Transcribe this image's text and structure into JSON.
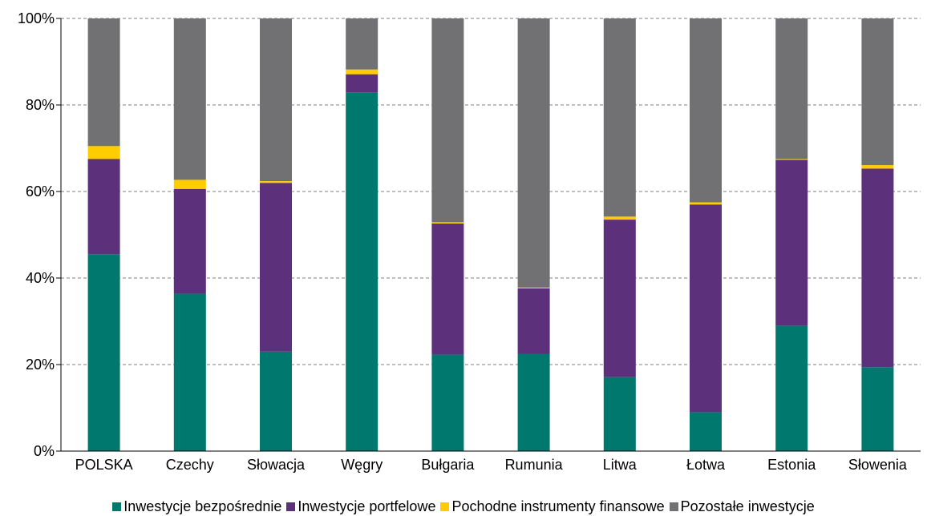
{
  "chart_data": {
    "type": "bar",
    "stacked": true,
    "percent_scale": true,
    "categories": [
      "POLSKA",
      "Czechy",
      "Słowacja",
      "Węgry",
      "Bułgaria",
      "Rumunia",
      "Litwa",
      "Łotwa",
      "Estonia",
      "Słowenia"
    ],
    "series": [
      {
        "name": "Inwestycje bezpośrednie",
        "color": "#00786d",
        "values": [
          45.5,
          36.4,
          23.0,
          82.9,
          22.3,
          22.5,
          17.1,
          9.0,
          29.0,
          19.4
        ]
      },
      {
        "name": "Inwestycje portfelowe",
        "color": "#5c307a",
        "values": [
          22.0,
          24.2,
          39.0,
          4.2,
          30.3,
          15.1,
          36.4,
          48.0,
          38.3,
          45.9
        ]
      },
      {
        "name": "Pochodne instrumenty finansowe",
        "color": "#ffcc00",
        "values": [
          3.0,
          2.1,
          0.4,
          1.1,
          0.3,
          0.2,
          0.7,
          0.5,
          0.2,
          0.8
        ]
      },
      {
        "name": "Pozostałe inwestycje",
        "color": "#717174",
        "values": [
          29.5,
          37.3,
          37.6,
          11.8,
          47.1,
          62.2,
          45.8,
          42.5,
          32.5,
          33.9
        ]
      }
    ],
    "y_ticks": [
      "0%",
      "20%",
      "40%",
      "60%",
      "80%",
      "100%"
    ],
    "ylim": [
      0,
      100
    ],
    "grid": true,
    "legend_position": "bottom"
  }
}
